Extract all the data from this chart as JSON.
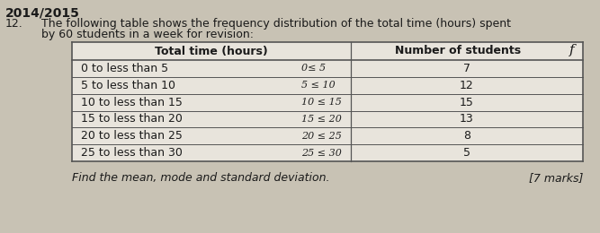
{
  "year": "2014/2015",
  "question_num": "12.",
  "question_text": "The following table shows the frequency distribution of the total time (hours) spent\nby 60 students in a week for revision:",
  "col1_header": "Total time (hours)",
  "col2_header": "Number of students",
  "col2_header_suffix": "f",
  "rows": [
    [
      "0 to less than 5",
      "0≤ 5",
      7
    ],
    [
      "5 to less than 10",
      "5 ≤ 10",
      12
    ],
    [
      "10 to less than 15",
      "10 ≤ 15",
      15
    ],
    [
      "15 to less than 20",
      "15 ≤ 20",
      13
    ],
    [
      "20 to less than 25",
      "20 ≤ 25",
      8
    ],
    [
      "25 to less than 30",
      "25 ≤ 30",
      5
    ]
  ],
  "footer_text": "Find the mean, mode and standard deviation.",
  "footer_marks": "[7 marks]",
  "page_bg": "#c8c2b4",
  "table_cell_bg": "#e8e4dc",
  "header_cell_bg": "#e8e4dc",
  "text_color": "#1a1a1a",
  "annot_color": "#222222",
  "font_size_year": 10,
  "font_size_body": 9,
  "font_size_table": 9,
  "font_size_footer": 9
}
